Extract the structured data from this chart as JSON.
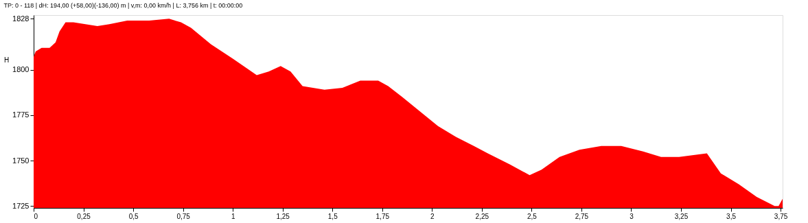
{
  "chart_data": {
    "type": "area",
    "title": "TP: 0 - 118 | dH: 194,00  (+58,00)(-136,00) m | v,m: 0,00 km/h | L: 3,756 km | t: 00:00:00",
    "ylabel": "H",
    "x": [
      0,
      0.01,
      0.04,
      0.08,
      0.11,
      0.13,
      0.16,
      0.2,
      0.26,
      0.32,
      0.38,
      0.47,
      0.58,
      0.68,
      0.74,
      0.79,
      0.89,
      1.0,
      1.12,
      1.18,
      1.24,
      1.29,
      1.35,
      1.46,
      1.55,
      1.64,
      1.73,
      1.78,
      1.85,
      1.94,
      2.03,
      2.12,
      2.21,
      2.28,
      2.39,
      2.49,
      2.55,
      2.64,
      2.74,
      2.85,
      2.95,
      3.06,
      3.15,
      3.24,
      3.38,
      3.45,
      3.54,
      3.63,
      3.72,
      3.74,
      3.76
    ],
    "series": [
      {
        "color": "#ff0000",
        "values": [
          1807,
          1810,
          1812,
          1812,
          1815,
          1821,
          1826,
          1826,
          1825,
          1824,
          1825,
          1827,
          1827,
          1828,
          1826,
          1823,
          1814,
          1806,
          1797,
          1799,
          1802,
          1799,
          1791,
          1789,
          1790,
          1794,
          1794,
          1791,
          1785,
          1777,
          1769,
          1763,
          1758,
          1754,
          1748,
          1742,
          1745,
          1752,
          1756,
          1758,
          1758,
          1755,
          1752,
          1752,
          1754,
          1743,
          1737,
          1730,
          1725,
          1725,
          1729
        ]
      }
    ],
    "xlim": [
      0,
      3.76
    ],
    "ylim": [
      1724,
      1830
    ],
    "xticks": [
      0,
      {
        "value": 0.25,
        "label": "0,25"
      },
      {
        "value": 0.5,
        "label": "0,5"
      },
      {
        "value": 0.75,
        "label": "0,75"
      },
      1,
      {
        "value": 1.25,
        "label": "1,25"
      },
      {
        "value": 1.5,
        "label": "1,5"
      },
      {
        "value": 1.75,
        "label": "1,75"
      },
      2,
      {
        "value": 2.25,
        "label": "2,25"
      },
      {
        "value": 2.5,
        "label": "2,5"
      },
      {
        "value": 2.75,
        "label": "2,75"
      },
      3,
      {
        "value": 3.25,
        "label": "3,25"
      },
      {
        "value": 3.5,
        "label": "3,5"
      },
      {
        "value": 3.75,
        "label": "3,75"
      }
    ],
    "yticks": [
      1725,
      1750,
      1775,
      1800,
      1828
    ],
    "grid": false,
    "legend": false
  }
}
